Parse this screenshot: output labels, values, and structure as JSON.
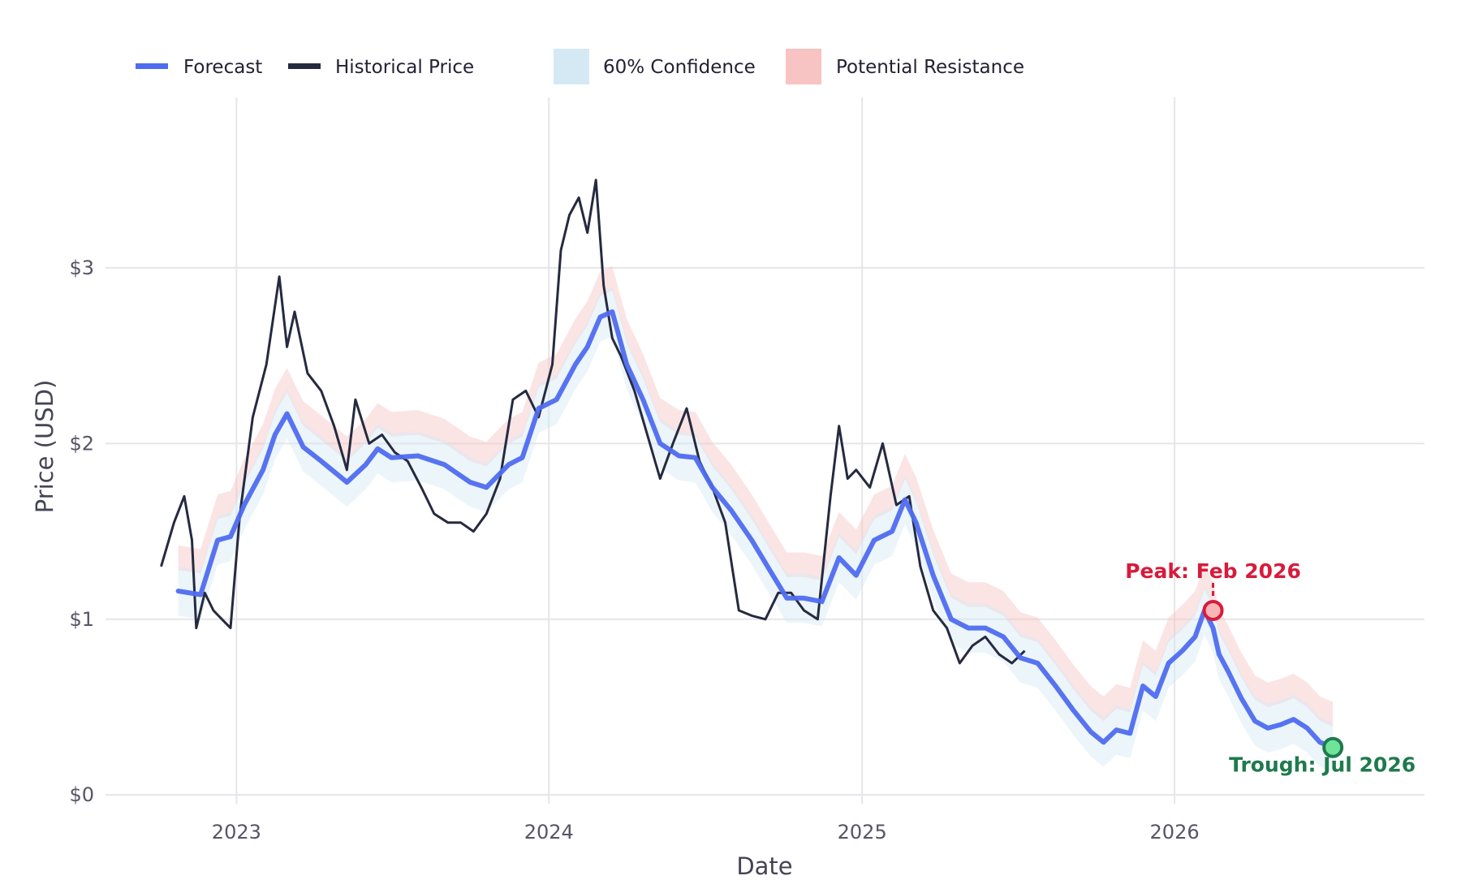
{
  "chart_data": {
    "type": "line",
    "title": "",
    "xlabel": "Date",
    "ylabel": "Price (USD)",
    "x_range": [
      "2022-08-01",
      "2026-10-20"
    ],
    "ylim": [
      -0.05,
      3.97
    ],
    "x_ticks": [
      {
        "label": "2023",
        "date": "2023-01-01"
      },
      {
        "label": "2024",
        "date": "2024-01-01"
      },
      {
        "label": "2025",
        "date": "2025-01-01"
      },
      {
        "label": "2026",
        "date": "2026-01-01"
      }
    ],
    "y_ticks": [
      {
        "label": "$0",
        "value": 0
      },
      {
        "label": "$1",
        "value": 1
      },
      {
        "label": "$2",
        "value": 2
      },
      {
        "label": "$3",
        "value": 3
      }
    ],
    "grid": true,
    "legend_position": "top-left",
    "legend": [
      {
        "label": "Forecast",
        "kind": "line",
        "color": "#4f6cf0"
      },
      {
        "label": "Historical Price",
        "kind": "line",
        "color": "#262a40"
      },
      {
        "label": "60% Confidence",
        "kind": "area",
        "color": "#d4e9f3"
      },
      {
        "label": "Potential Resistance",
        "kind": "area",
        "color": "#f7c3c3"
      }
    ],
    "series": [
      {
        "name": "Historical Price",
        "color": "#262a40",
        "x": [
          "2022-10-05",
          "2022-10-20",
          "2022-11-01",
          "2022-11-10",
          "2022-11-15",
          "2022-11-25",
          "2022-12-05",
          "2022-12-15",
          "2022-12-25",
          "2023-01-05",
          "2023-01-20",
          "2023-02-05",
          "2023-02-20",
          "2023-03-01",
          "2023-03-10",
          "2023-03-25",
          "2023-04-10",
          "2023-04-25",
          "2023-05-10",
          "2023-05-20",
          "2023-06-05",
          "2023-06-20",
          "2023-07-05",
          "2023-07-20",
          "2023-08-05",
          "2023-08-20",
          "2023-09-05",
          "2023-09-20",
          "2023-10-05",
          "2023-10-20",
          "2023-11-05",
          "2023-11-20",
          "2023-12-05",
          "2023-12-20",
          "2024-01-05",
          "2024-01-15",
          "2024-01-25",
          "2024-02-05",
          "2024-02-15",
          "2024-02-25",
          "2024-03-05",
          "2024-03-15",
          "2024-03-25",
          "2024-04-10",
          "2024-04-25",
          "2024-05-10",
          "2024-05-25",
          "2024-06-10",
          "2024-06-25",
          "2024-07-10",
          "2024-07-25",
          "2024-08-10",
          "2024-08-25",
          "2024-09-10",
          "2024-09-25",
          "2024-10-10",
          "2024-10-25",
          "2024-11-10",
          "2024-11-25",
          "2024-12-05",
          "2024-12-15",
          "2024-12-25",
          "2025-01-10",
          "2025-01-25",
          "2025-02-10",
          "2025-02-25",
          "2025-03-10",
          "2025-03-25",
          "2025-04-10",
          "2025-04-25",
          "2025-05-10",
          "2025-05-25",
          "2025-06-10",
          "2025-06-25",
          "2025-07-10"
        ],
        "values": [
          1.3,
          1.55,
          1.7,
          1.45,
          0.95,
          1.15,
          1.05,
          1.0,
          0.95,
          1.6,
          2.15,
          2.45,
          2.95,
          2.55,
          2.75,
          2.4,
          2.3,
          2.1,
          1.85,
          2.25,
          2.0,
          2.05,
          1.95,
          1.9,
          1.75,
          1.6,
          1.55,
          1.55,
          1.5,
          1.6,
          1.8,
          2.25,
          2.3,
          2.15,
          2.45,
          3.1,
          3.3,
          3.4,
          3.2,
          3.5,
          2.9,
          2.6,
          2.5,
          2.3,
          2.05,
          1.8,
          2.0,
          2.2,
          1.9,
          1.75,
          1.55,
          1.05,
          1.02,
          1.0,
          1.15,
          1.15,
          1.05,
          1.0,
          1.7,
          2.1,
          1.8,
          1.85,
          1.75,
          2.0,
          1.65,
          1.7,
          1.3,
          1.05,
          0.95,
          0.75,
          0.85,
          0.9,
          0.8,
          0.75,
          0.82
        ]
      },
      {
        "name": "Forecast",
        "color": "#4f6cf0",
        "x": [
          "2022-10-25",
          "2022-11-20",
          "2022-12-10",
          "2022-12-25",
          "2023-01-10",
          "2023-02-01",
          "2023-02-15",
          "2023-03-01",
          "2023-03-20",
          "2023-04-10",
          "2023-05-10",
          "2023-06-01",
          "2023-06-15",
          "2023-07-01",
          "2023-08-01",
          "2023-09-01",
          "2023-10-01",
          "2023-10-20",
          "2023-11-15",
          "2023-12-01",
          "2023-12-20",
          "2024-01-10",
          "2024-02-01",
          "2024-02-15",
          "2024-03-01",
          "2024-03-15",
          "2024-04-01",
          "2024-04-20",
          "2024-05-10",
          "2024-06-01",
          "2024-06-20",
          "2024-07-10",
          "2024-08-01",
          "2024-08-25",
          "2024-09-15",
          "2024-10-05",
          "2024-10-25",
          "2024-11-15",
          "2024-12-05",
          "2024-12-25",
          "2025-01-15",
          "2025-02-05",
          "2025-02-20",
          "2025-03-05",
          "2025-03-25",
          "2025-04-15",
          "2025-05-05",
          "2025-05-25",
          "2025-06-15",
          "2025-07-05",
          "2025-07-25",
          "2025-08-15",
          "2025-09-05",
          "2025-09-25",
          "2025-10-10",
          "2025-10-25",
          "2025-11-10",
          "2025-11-25",
          "2025-12-10",
          "2025-12-25",
          "2026-01-10",
          "2026-01-25",
          "2026-02-05",
          "2026-02-15",
          "2026-02-22",
          "2026-03-05",
          "2026-03-20",
          "2026-04-05",
          "2026-04-20",
          "2026-05-05",
          "2026-05-20",
          "2026-06-05",
          "2026-06-20",
          "2026-07-05"
        ],
        "values": [
          1.16,
          1.14,
          1.45,
          1.47,
          1.65,
          1.85,
          2.05,
          2.17,
          1.98,
          1.9,
          1.78,
          1.88,
          1.97,
          1.92,
          1.93,
          1.88,
          1.78,
          1.75,
          1.88,
          1.92,
          2.2,
          2.25,
          2.45,
          2.55,
          2.72,
          2.75,
          2.45,
          2.25,
          2.0,
          1.93,
          1.92,
          1.75,
          1.62,
          1.45,
          1.28,
          1.12,
          1.12,
          1.1,
          1.35,
          1.25,
          1.45,
          1.5,
          1.68,
          1.55,
          1.25,
          1.0,
          0.95,
          0.95,
          0.9,
          0.78,
          0.75,
          0.62,
          0.48,
          0.36,
          0.3,
          0.37,
          0.35,
          0.62,
          0.56,
          0.75,
          0.82,
          0.9,
          1.05,
          0.95,
          0.8,
          0.7,
          0.55,
          0.42,
          0.38,
          0.4,
          0.43,
          0.38,
          0.3,
          0.27
        ]
      }
    ],
    "confidence_band_60": {
      "lower_offset": -0.14,
      "upper_offset": 0.14
    },
    "resistance_band": {
      "lower_offset": 0.12,
      "upper_offset": 0.26
    },
    "annotations": [
      {
        "label": "Peak: Feb 2026",
        "date": "2026-02-15",
        "value": 1.05,
        "color": "#d81b3b"
      },
      {
        "label": "Trough: Jul 2026",
        "date": "2026-07-05",
        "value": 0.27,
        "color": "#1f7a4d"
      }
    ]
  }
}
